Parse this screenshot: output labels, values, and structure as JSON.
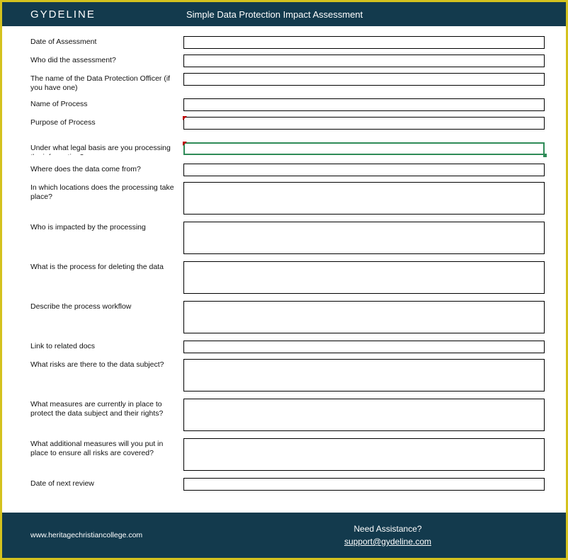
{
  "colors": {
    "outer_border": "#d4c21e",
    "header_bg": "#133a4d",
    "header_text": "#ffffff",
    "body_bg": "#ffffff",
    "field_border": "#000000",
    "selected_border": "#2e8b57",
    "marker": "#c00000",
    "label_text": "#111111"
  },
  "header": {
    "brand": "GYDELINE",
    "title": "Simple Data Protection Impact Assessment"
  },
  "fields": [
    {
      "label": "Date of Assessment",
      "height": "single",
      "marker": false,
      "selected": false
    },
    {
      "label": "Who did the assessment?",
      "height": "single",
      "marker": false,
      "selected": false
    },
    {
      "label": "The name of the Data Protection Officer (if you have one)",
      "height": "single",
      "marker": false,
      "selected": false
    },
    {
      "label": "Name of Process",
      "height": "single",
      "marker": false,
      "selected": false
    },
    {
      "label": "Purpose of Process",
      "height": "single",
      "marker": true,
      "selected": false
    },
    {
      "label": "Under what legal basis are you processing the information?",
      "height": "single",
      "marker": true,
      "selected": true
    },
    {
      "label": "Where does the data come from?",
      "height": "single",
      "marker": false,
      "selected": false
    },
    {
      "label": "In which locations does the processing take place?",
      "height": "tall",
      "marker": false,
      "selected": false
    },
    {
      "label": "Who is impacted by the processing",
      "height": "tall",
      "marker": false,
      "selected": false
    },
    {
      "label": "What is the process for deleting the data",
      "height": "tall",
      "marker": false,
      "selected": false
    },
    {
      "label": "Describe the process workflow",
      "height": "tall",
      "marker": false,
      "selected": false
    },
    {
      "label": "Link to related docs",
      "height": "single",
      "marker": false,
      "selected": false
    },
    {
      "label": "What risks are there to the data subject?",
      "height": "tall",
      "marker": false,
      "selected": false
    },
    {
      "label": "What measures are currently in place to protect the data subject and their rights?",
      "height": "tall",
      "marker": false,
      "selected": false
    },
    {
      "label": "What additional measures will you put in place to ensure all risks are covered?",
      "height": "tall",
      "marker": false,
      "selected": false
    },
    {
      "label": "Date of next review",
      "height": "single",
      "marker": false,
      "selected": false
    }
  ],
  "footer": {
    "left": "www.heritagechristiancollege.com",
    "assist_label": "Need Assistance?",
    "support_email": "support@gydeline.com"
  }
}
